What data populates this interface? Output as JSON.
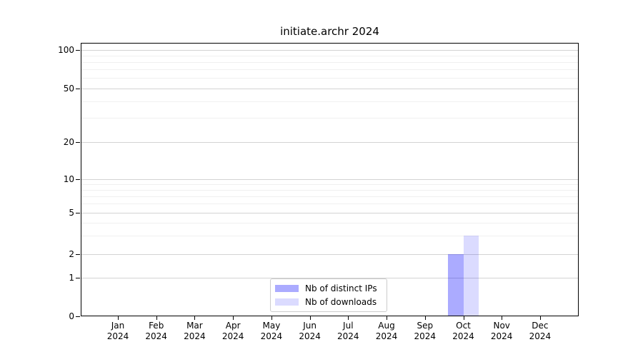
{
  "chart_data": {
    "type": "bar",
    "title": "initiate.archr 2024",
    "scale": "symlog",
    "grid": "horizontal-major-and-minor",
    "legend_position": "lower center",
    "year": "2024",
    "categories": [
      "Jan",
      "Feb",
      "Mar",
      "Apr",
      "May",
      "Jun",
      "Jul",
      "Aug",
      "Sep",
      "Oct",
      "Nov",
      "Dec"
    ],
    "series": [
      {
        "name": "Nb of distinct IPs",
        "color": "rgba(0,0,255,0.33)",
        "values": [
          0,
          0,
          0,
          0,
          0,
          0,
          0,
          0,
          0,
          2,
          0,
          0
        ]
      },
      {
        "name": "Nb of downloads",
        "color": "rgba(0,0,255,0.14)",
        "values": [
          0,
          0,
          0,
          0,
          0,
          0,
          0,
          0,
          0,
          3,
          0,
          0
        ]
      }
    ],
    "y_ticks": [
      0,
      1,
      2,
      5,
      10,
      20,
      50,
      100
    ],
    "y_minor_ticks": [
      3,
      4,
      6,
      7,
      8,
      9,
      30,
      40,
      60,
      70,
      80,
      90
    ],
    "ylim": [
      0,
      110
    ],
    "xlabel": "",
    "ylabel": ""
  },
  "colors": {
    "background": "#ffffff",
    "spine": "#000000",
    "grid_major": "#d3d3d3",
    "grid_minor": "#f0f0f0",
    "legend_border": "#cccccc"
  }
}
